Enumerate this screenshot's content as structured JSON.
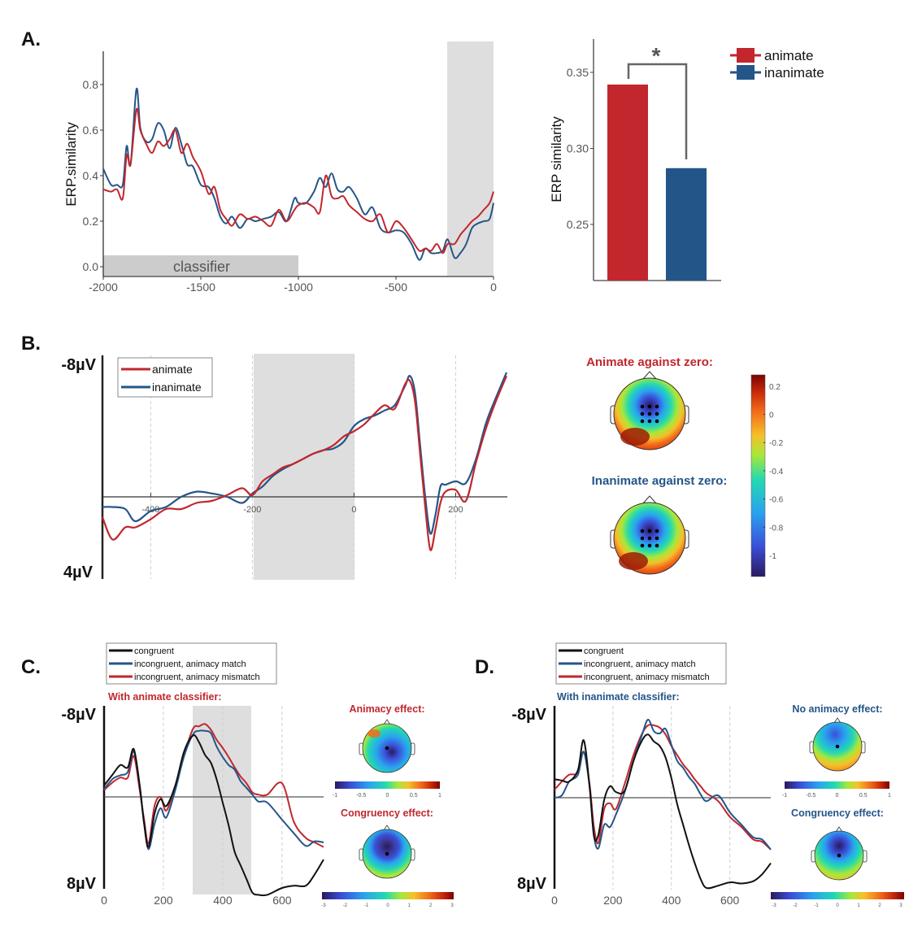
{
  "colors": {
    "animate": "#c1272d",
    "inanimate": "#245589",
    "congruent": "#111111",
    "shade": "#dedede",
    "classifier_bar": "#cccccc"
  },
  "chart_data": [
    {
      "id": "A-line",
      "panel_label": "A.",
      "type": "line",
      "title": "",
      "xlabel": "",
      "ylabel": "ERP.similarity",
      "xlim": [
        -2000,
        0
      ],
      "ylim": [
        -0.04,
        0.95
      ],
      "xticks": [
        "-2000",
        "-1500",
        "-1000",
        "-500",
        "0"
      ],
      "xtick_values": [
        -2000,
        -1500,
        -1000,
        -500,
        0
      ],
      "yticks": [
        "0.0",
        "0.2",
        "0.4",
        "0.6",
        "0.8"
      ],
      "ytick_values": [
        0,
        0.2,
        0.4,
        0.6,
        0.8
      ],
      "annotations": [
        {
          "type": "band",
          "label": "classifier",
          "x": [
            -2000,
            -1000
          ],
          "y": [
            -0.04,
            0.05
          ]
        },
        {
          "type": "shade",
          "x": [
            -235,
            0
          ]
        }
      ],
      "x": [
        -2000,
        -1960,
        -1930,
        -1900,
        -1880,
        -1860,
        -1830,
        -1810,
        -1780,
        -1750,
        -1720,
        -1690,
        -1660,
        -1630,
        -1600,
        -1570,
        -1540,
        -1500,
        -1460,
        -1430,
        -1400,
        -1370,
        -1340,
        -1300,
        -1260,
        -1220,
        -1180,
        -1140,
        -1100,
        -1060,
        -1020,
        -1000,
        -960,
        -920,
        -890,
        -860,
        -830,
        -800,
        -770,
        -740,
        -700,
        -660,
        -620,
        -580,
        -540,
        -500,
        -460,
        -420,
        -380,
        -350,
        -320,
        -290,
        -260,
        -235,
        -200,
        -170,
        -140,
        -110,
        -80,
        -50,
        -20,
        0
      ],
      "series": [
        {
          "name": "animate",
          "values": [
            0.34,
            0.33,
            0.34,
            0.3,
            0.49,
            0.45,
            0.69,
            0.6,
            0.54,
            0.5,
            0.55,
            0.53,
            0.56,
            0.6,
            0.5,
            0.54,
            0.48,
            0.42,
            0.32,
            0.35,
            0.25,
            0.21,
            0.18,
            0.23,
            0.21,
            0.22,
            0.2,
            0.18,
            0.25,
            0.2,
            0.25,
            0.27,
            0.28,
            0.26,
            0.24,
            0.4,
            0.31,
            0.3,
            0.31,
            0.27,
            0.24,
            0.21,
            0.2,
            0.23,
            0.15,
            0.2,
            0.17,
            0.12,
            0.07,
            0.08,
            0.07,
            0.1,
            0.06,
            0.1,
            0.1,
            0.14,
            0.17,
            0.2,
            0.22,
            0.25,
            0.28,
            0.33
          ]
        },
        {
          "name": "inanimate",
          "values": [
            0.43,
            0.36,
            0.36,
            0.36,
            0.53,
            0.45,
            0.78,
            0.61,
            0.55,
            0.56,
            0.63,
            0.6,
            0.52,
            0.61,
            0.54,
            0.45,
            0.44,
            0.36,
            0.35,
            0.3,
            0.22,
            0.19,
            0.22,
            0.17,
            0.21,
            0.2,
            0.21,
            0.22,
            0.24,
            0.2,
            0.3,
            0.28,
            0.28,
            0.33,
            0.39,
            0.35,
            0.41,
            0.34,
            0.33,
            0.35,
            0.3,
            0.23,
            0.26,
            0.17,
            0.15,
            0.16,
            0.15,
            0.1,
            0.03,
            0.08,
            0.06,
            0.06,
            0.07,
            0.12,
            0.04,
            0.06,
            0.1,
            0.17,
            0.19,
            0.2,
            0.21,
            0.28
          ]
        }
      ]
    },
    {
      "id": "A-bar",
      "type": "bar",
      "title": "",
      "xlabel": "",
      "ylabel": "ERP similarity",
      "ylim": [
        0.21,
        0.372
      ],
      "yticks": [
        "0.25",
        "0.30",
        "0.35"
      ],
      "ytick_values": [
        0.25,
        0.3,
        0.35
      ],
      "categories": [
        "animate",
        "inanimate"
      ],
      "values": [
        0.342,
        0.287
      ],
      "significance": "*",
      "legend": {
        "placement": "top-right",
        "entries": [
          "animate",
          "inanimate"
        ]
      }
    },
    {
      "id": "B",
      "panel_label": "B.",
      "type": "line",
      "ylabel_top": "-8µV",
      "ylabel_bottom": "4µV",
      "ylim": [
        -8,
        4
      ],
      "y_inverted": true,
      "xlim": [
        -495,
        300
      ],
      "xticks": [
        "-400",
        "-200",
        "0",
        "200"
      ],
      "xtick_values": [
        -400,
        -200,
        0,
        200
      ],
      "gridlines_x": [
        -400,
        -200,
        0,
        200
      ],
      "shade": [
        -200,
        0
      ],
      "legend": {
        "placement": "top-left",
        "entries": [
          "animate",
          "inanimate"
        ]
      },
      "x": [
        -495,
        -475,
        -450,
        -430,
        -400,
        -370,
        -340,
        -310,
        -280,
        -250,
        -220,
        -200,
        -180,
        -160,
        -140,
        -120,
        -100,
        -80,
        -60,
        -40,
        -20,
        0,
        20,
        40,
        60,
        80,
        100,
        110,
        120,
        130,
        140,
        150,
        160,
        170,
        180,
        200,
        220,
        240,
        260,
        280,
        300
      ],
      "series": [
        {
          "name": "animate",
          "values": [
            1.0,
            2.1,
            1.5,
            1.5,
            1.1,
            0.6,
            0.6,
            0.3,
            0.2,
            -0.1,
            -0.5,
            -0.1,
            -0.9,
            -1.3,
            -1.7,
            -1.9,
            -2.2,
            -2.5,
            -2.7,
            -3.0,
            -3.5,
            -3.8,
            -4.2,
            -4.8,
            -5.3,
            -5.1,
            -6.5,
            -6.7,
            -5.5,
            -2.5,
            0.5,
            2.6,
            1.6,
            0.3,
            -0.3,
            -0.4,
            0.2,
            -2.0,
            -4.0,
            -5.6,
            -7.0
          ]
        },
        {
          "name": "inanimate",
          "values": [
            0.5,
            0.5,
            0.6,
            1.2,
            0.7,
            0.5,
            0.0,
            -0.3,
            -0.2,
            0.0,
            0.3,
            -0.2,
            -0.6,
            -1.2,
            -1.6,
            -1.9,
            -2.2,
            -2.5,
            -2.7,
            -2.8,
            -3.2,
            -4.1,
            -4.5,
            -4.7,
            -5.0,
            -5.3,
            -6.4,
            -7.0,
            -6.0,
            -3.0,
            0.0,
            1.8,
            0.9,
            -0.6,
            -0.7,
            -0.9,
            -0.8,
            -2.2,
            -4.3,
            -5.8,
            -7.2
          ]
        }
      ],
      "topoplots": [
        {
          "title": "Animate against zero:",
          "title_color": "animate",
          "electrodes_highlighted": 9
        },
        {
          "title": "Inanimate against zero:",
          "title_color": "inanimate",
          "electrodes_highlighted": 9
        }
      ],
      "colorbar": {
        "orientation": "vertical",
        "range": [
          -1.15,
          0.28
        ],
        "ticks": [
          "0.2",
          "0",
          "-0.2",
          "-0.4",
          "-0.6",
          "-0.8",
          "-1"
        ],
        "tick_values": [
          0.2,
          0,
          -0.2,
          -0.4,
          -0.6,
          -0.8,
          -1
        ]
      }
    },
    {
      "id": "C",
      "panel_label": "C.",
      "type": "line",
      "subtitle": "With animate classifier:",
      "subtitle_color": "animate",
      "ylabel_top": "-8µV",
      "ylabel_bottom": "8µV",
      "ylim": [
        -8,
        8
      ],
      "y_inverted": true,
      "xlim": [
        0,
        740
      ],
      "xticks": [
        "0",
        "200",
        "400",
        "600"
      ],
      "xtick_values": [
        0,
        200,
        400,
        600
      ],
      "gridlines_x": [
        200,
        400,
        600
      ],
      "shade": [
        300,
        500
      ],
      "legend": {
        "placement": "top",
        "entries": [
          "congruent",
          "incongruent, animacy match",
          "incongruent, animacy mismatch"
        ]
      },
      "x": [
        0,
        30,
        55,
        80,
        100,
        120,
        135,
        150,
        170,
        190,
        210,
        240,
        270,
        300,
        320,
        340,
        360,
        380,
        400,
        420,
        440,
        460,
        480,
        500,
        520,
        550,
        600,
        640,
        680,
        710,
        740
      ],
      "series": [
        {
          "name": "congruent",
          "values": [
            -1.0,
            -2.0,
            -2.8,
            -2.6,
            -4.2,
            -1.0,
            2.4,
            4.4,
            1.5,
            0.2,
            0.8,
            -1.0,
            -4.0,
            -5.4,
            -4.8,
            -3.7,
            -3.0,
            -1.5,
            0.5,
            2.5,
            4.8,
            6.0,
            7.2,
            8.4,
            8.6,
            8.6,
            8.0,
            7.8,
            7.8,
            6.8,
            5.5
          ]
        },
        {
          "name": "incongruent, animacy match",
          "values": [
            -0.7,
            -1.6,
            -1.9,
            -2.2,
            -4.0,
            -1.0,
            2.3,
            4.6,
            2.4,
            1.0,
            1.8,
            -0.6,
            -3.6,
            -5.5,
            -5.8,
            -5.8,
            -5.6,
            -4.4,
            -3.5,
            -2.8,
            -2.4,
            -1.4,
            -0.8,
            -0.2,
            0.4,
            0.5,
            2.0,
            3.2,
            4.3,
            3.9,
            4.0
          ]
        },
        {
          "name": "incongruent, animacy mismatch",
          "values": [
            -0.6,
            -1.3,
            -1.7,
            -1.7,
            -3.6,
            -0.6,
            2.0,
            4.1,
            0.8,
            0.0,
            1.2,
            -1.0,
            -3.7,
            -6.0,
            -6.2,
            -6.4,
            -5.9,
            -5.0,
            -4.3,
            -3.5,
            -2.6,
            -1.8,
            -1.2,
            -0.4,
            -0.2,
            -0.2,
            -1.2,
            2.2,
            3.6,
            4.0,
            4.4
          ]
        }
      ],
      "topoplots": [
        {
          "title": "Animacy effect:",
          "title_color": "animate",
          "colorbar_ticks": [
            "-1",
            "-0.5",
            "0",
            "0.5",
            "1"
          ]
        },
        {
          "title": "Congruency effect:",
          "title_color": "animate",
          "colorbar_ticks": [
            "-3",
            "-2",
            "-1",
            "0",
            "1",
            "2",
            "3"
          ]
        }
      ]
    },
    {
      "id": "D",
      "panel_label": "D.",
      "type": "line",
      "subtitle": "With inanimate classifier:",
      "subtitle_color": "inanimate",
      "ylabel_top": "-8µV",
      "ylabel_bottom": "8µV",
      "ylim": [
        -8,
        8
      ],
      "y_inverted": true,
      "xlim": [
        0,
        740
      ],
      "xticks": [
        "0",
        "200",
        "400",
        "600"
      ],
      "xtick_values": [
        0,
        200,
        400,
        600
      ],
      "gridlines_x": [
        200,
        400,
        600
      ],
      "legend": {
        "placement": "top",
        "entries": [
          "congruent",
          "incongruent, animacy match",
          "incongruent, animacy mismatch"
        ]
      },
      "x": [
        0,
        25,
        50,
        80,
        100,
        120,
        135,
        150,
        170,
        190,
        210,
        240,
        270,
        300,
        320,
        340,
        360,
        380,
        400,
        420,
        440,
        460,
        480,
        500,
        520,
        560,
        600,
        640,
        680,
        710,
        740
      ],
      "series": [
        {
          "name": "congruent",
          "values": [
            -1.6,
            -1.5,
            -1.4,
            -2.4,
            -5.0,
            -1.0,
            3.4,
            3.3,
            0.2,
            -1.0,
            -0.5,
            -0.6,
            -3.2,
            -5.0,
            -5.5,
            -4.9,
            -4.5,
            -3.5,
            -1.7,
            0.6,
            2.4,
            4.2,
            5.8,
            7.2,
            8.0,
            7.8,
            7.5,
            7.6,
            7.4,
            6.8,
            5.8
          ]
        },
        {
          "name": "incongruent, animacy match",
          "values": [
            0.0,
            -0.2,
            -1.4,
            -2.0,
            -4.0,
            -1.0,
            3.3,
            4.5,
            2.4,
            2.6,
            1.5,
            -0.5,
            -3.2,
            -5.5,
            -6.8,
            -5.8,
            -5.6,
            -6.0,
            -4.6,
            -3.2,
            -2.6,
            -1.8,
            -1.2,
            -0.3,
            0.3,
            -0.2,
            1.3,
            2.4,
            3.5,
            3.7,
            4.6
          ]
        },
        {
          "name": "incongruent, animacy mismatch",
          "values": [
            -0.7,
            -1.4,
            -2.0,
            -2.2,
            -4.0,
            -1.2,
            2.6,
            4.0,
            1.0,
            0.5,
            1.0,
            -1.2,
            -3.7,
            -5.6,
            -6.3,
            -6.3,
            -6.1,
            -5.5,
            -4.5,
            -3.7,
            -2.9,
            -2.3,
            -1.6,
            -1.0,
            -0.4,
            0.3,
            1.7,
            2.6,
            3.7,
            3.9,
            4.6
          ]
        }
      ],
      "topoplots": [
        {
          "title": "No animacy effect:",
          "title_color": "inanimate",
          "colorbar_ticks": [
            "-1",
            "-0.5",
            "0",
            "0.5",
            "1"
          ]
        },
        {
          "title": "Congruency effect:",
          "title_color": "inanimate",
          "colorbar_ticks": [
            "-3",
            "-2",
            "-1",
            "0",
            "1",
            "2",
            "3"
          ]
        }
      ]
    }
  ]
}
